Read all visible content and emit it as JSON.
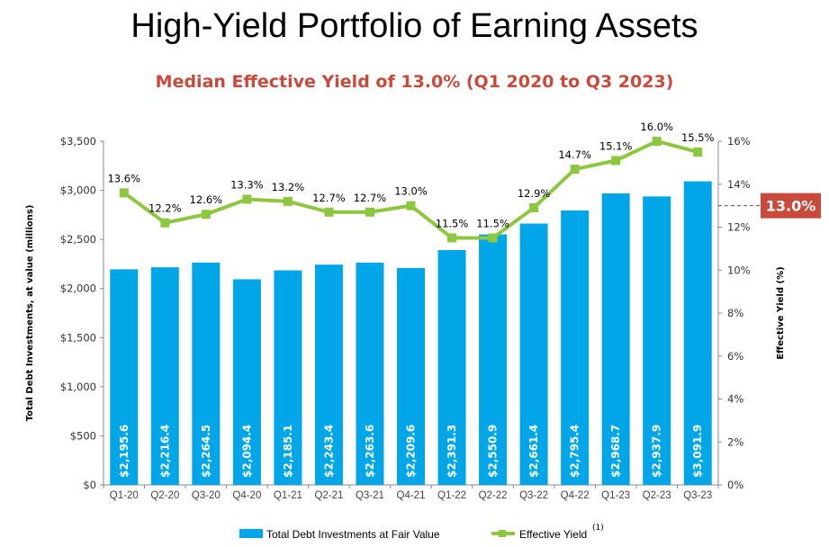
{
  "title": "High-Yield Portfolio of Earning Assets",
  "subtitle": "Median Effective Yield of 13.0% (Q1 2020 to Q3 2023)",
  "chart_data": {
    "type": "bar+line",
    "categories": [
      "Q1-20",
      "Q2-20",
      "Q3-20",
      "Q4-20",
      "Q1-21",
      "Q2-21",
      "Q3-21",
      "Q4-21",
      "Q1-22",
      "Q2-22",
      "Q3-22",
      "Q4-22",
      "Q1-23",
      "Q2-23",
      "Q3-23"
    ],
    "series": [
      {
        "name": "Total Debt Investments at Fair Value",
        "type": "bar",
        "axis": "left",
        "values": [
          2195.6,
          2216.4,
          2264.5,
          2094.4,
          2185.1,
          2243.4,
          2263.6,
          2209.6,
          2391.3,
          2550.9,
          2661.4,
          2795.4,
          2968.7,
          2937.9,
          3091.9
        ],
        "labels": [
          "$2,195.6",
          "$2,216.4",
          "$2,264.5",
          "$2,094.4",
          "$2,185.1",
          "$2,243.4",
          "$2,263.6",
          "$2,209.6",
          "$2,391.3",
          "$2,550.9",
          "$2,661.4",
          "$2,795.4",
          "$2,968.7",
          "$2,937.9",
          "$3,091.9"
        ],
        "color": "#00a6e8"
      },
      {
        "name": "Effective Yield",
        "superscript": "(1)",
        "type": "line",
        "axis": "right",
        "values": [
          13.6,
          12.2,
          12.6,
          13.3,
          13.2,
          12.7,
          12.7,
          13.0,
          11.5,
          11.5,
          12.9,
          14.7,
          15.1,
          16.0,
          15.5
        ],
        "labels": [
          "13.6%",
          "12.2%",
          "12.6%",
          "13.3%",
          "13.2%",
          "12.7%",
          "12.7%",
          "13.0%",
          "11.5%",
          "11.5%",
          "12.9%",
          "14.7%",
          "15.1%",
          "16.0%",
          "15.5%"
        ],
        "color": "#8dc63f"
      }
    ],
    "ylabel": "Total Debt Investments, at value (millions)",
    "ylim": [
      0,
      3500
    ],
    "yticks": [
      "$0",
      "$500",
      "$1,000",
      "$1,500",
      "$2,000",
      "$2,500",
      "$3,000",
      "$3,500"
    ],
    "y2label": "Effective Yield (%)",
    "y2lim": [
      0,
      16
    ],
    "y2ticks": [
      "0%",
      "2%",
      "4%",
      "6%",
      "8%",
      "10%",
      "12%",
      "14%",
      "16%"
    ],
    "reference_line": {
      "value": 13.0,
      "label": "13.0%",
      "color": "#c94a3a"
    },
    "grid": false,
    "legend": "bottom"
  }
}
